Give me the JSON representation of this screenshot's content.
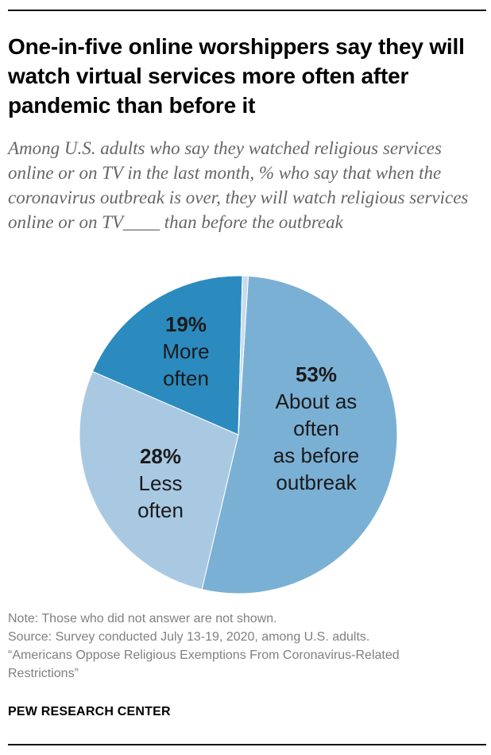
{
  "title": "One-in-five online worshippers say they will watch virtual services more often after pandemic than before it",
  "subtitle": "Among U.S. adults who say they watched religious services online or on TV in the last month, % who say that when the coronavirus outbreak is over, they will watch religious services online or on TV____ than before the outbreak",
  "chart_data": {
    "type": "pie",
    "title": "",
    "slices": [
      {
        "label": "About as often as before outbreak",
        "value": 53,
        "display": "53%",
        "lines": [
          "About as",
          "often",
          "as before",
          "outbreak"
        ],
        "color": "#7bb0d5"
      },
      {
        "label": "Less often",
        "value": 28,
        "display": "28%",
        "lines": [
          "Less",
          "often"
        ],
        "color": "#a9c9e3"
      },
      {
        "label": "More often",
        "value": 19,
        "display": "19%",
        "lines": [
          "More",
          "often"
        ],
        "color": "#2b8bbf"
      },
      {
        "label": "",
        "value": 0.6,
        "display": "",
        "lines": [],
        "color": "#c9dcee"
      }
    ]
  },
  "footer": {
    "note": "Note: Those who did not answer are not shown.",
    "source": "Source: Survey conducted July 13-19, 2020, among U.S. adults.",
    "report1": "“Americans Oppose Religious Exemptions From Coronavirus-Related",
    "report2": "Restrictions”"
  },
  "brand": "PEW RESEARCH CENTER"
}
